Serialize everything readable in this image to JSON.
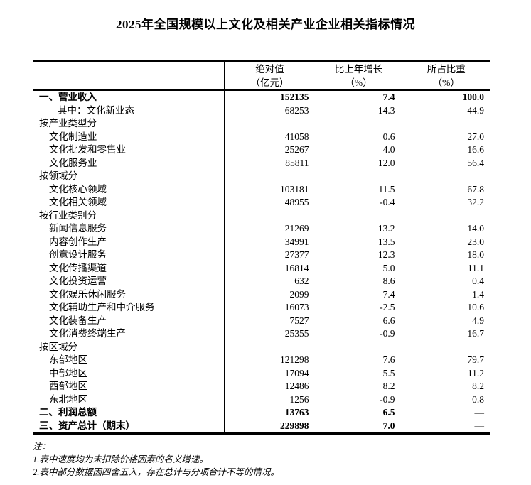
{
  "title": "2025年全国规模以上文化及相关产业企业相关指标情况",
  "table": {
    "header": {
      "cols": [
        {
          "line1": "",
          "line2": ""
        },
        {
          "line1": "绝对值",
          "line2": "（亿元）"
        },
        {
          "line1": "比上年增长",
          "line2": "（%）"
        },
        {
          "line1": "所占比重",
          "line2": "（%）"
        }
      ]
    },
    "rows": [
      {
        "label": "一、营业收入",
        "level": 0,
        "bold": true,
        "abs": "152135",
        "growth": "7.4",
        "share": "100.0"
      },
      {
        "label": "其中：文化新业态",
        "level": 2,
        "bold": false,
        "abs": "68253",
        "growth": "14.3",
        "share": "44.9"
      },
      {
        "label": "按产业类型分",
        "level": 0,
        "bold": false,
        "abs": "",
        "growth": "",
        "share": ""
      },
      {
        "label": "文化制造业",
        "level": 1,
        "bold": false,
        "abs": "41058",
        "growth": "0.6",
        "share": "27.0"
      },
      {
        "label": "文化批发和零售业",
        "level": 1,
        "bold": false,
        "abs": "25267",
        "growth": "4.0",
        "share": "16.6"
      },
      {
        "label": "文化服务业",
        "level": 1,
        "bold": false,
        "abs": "85811",
        "growth": "12.0",
        "share": "56.4"
      },
      {
        "label": "按领域分",
        "level": 0,
        "bold": false,
        "abs": "",
        "growth": "",
        "share": ""
      },
      {
        "label": "文化核心领域",
        "level": 1,
        "bold": false,
        "abs": "103181",
        "growth": "11.5",
        "share": "67.8"
      },
      {
        "label": "文化相关领域",
        "level": 1,
        "bold": false,
        "abs": "48955",
        "growth": "-0.4",
        "share": "32.2"
      },
      {
        "label": "按行业类别分",
        "level": 0,
        "bold": false,
        "abs": "",
        "growth": "",
        "share": ""
      },
      {
        "label": "新闻信息服务",
        "level": 1,
        "bold": false,
        "abs": "21269",
        "growth": "13.2",
        "share": "14.0"
      },
      {
        "label": "内容创作生产",
        "level": 1,
        "bold": false,
        "abs": "34991",
        "growth": "13.5",
        "share": "23.0"
      },
      {
        "label": "创意设计服务",
        "level": 1,
        "bold": false,
        "abs": "27377",
        "growth": "12.3",
        "share": "18.0"
      },
      {
        "label": "文化传播渠道",
        "level": 1,
        "bold": false,
        "abs": "16814",
        "growth": "5.0",
        "share": "11.1"
      },
      {
        "label": "文化投资运营",
        "level": 1,
        "bold": false,
        "abs": "632",
        "growth": "8.6",
        "share": "0.4"
      },
      {
        "label": "文化娱乐休闲服务",
        "level": 1,
        "bold": false,
        "abs": "2099",
        "growth": "7.4",
        "share": "1.4"
      },
      {
        "label": "文化辅助生产和中介服务",
        "level": 1,
        "bold": false,
        "abs": "16073",
        "growth": "-2.5",
        "share": "10.6"
      },
      {
        "label": "文化装备生产",
        "level": 1,
        "bold": false,
        "abs": "7527",
        "growth": "6.6",
        "share": "4.9"
      },
      {
        "label": "文化消费终端生产",
        "level": 1,
        "bold": false,
        "abs": "25355",
        "growth": "-0.9",
        "share": "16.7"
      },
      {
        "label": "按区域分",
        "level": 0,
        "bold": false,
        "abs": "",
        "growth": "",
        "share": ""
      },
      {
        "label": "东部地区",
        "level": 1,
        "bold": false,
        "abs": "121298",
        "growth": "7.6",
        "share": "79.7"
      },
      {
        "label": "中部地区",
        "level": 1,
        "bold": false,
        "abs": "17094",
        "growth": "5.5",
        "share": "11.2"
      },
      {
        "label": "西部地区",
        "level": 1,
        "bold": false,
        "abs": "12486",
        "growth": "8.2",
        "share": "8.2"
      },
      {
        "label": "东北地区",
        "level": 1,
        "bold": false,
        "abs": "1256",
        "growth": "-0.9",
        "share": "0.8"
      },
      {
        "label": "二、利润总额",
        "level": 0,
        "bold": true,
        "abs": "13763",
        "growth": "6.5",
        "share": "—"
      },
      {
        "label": "三、资产总计（期末）",
        "level": 0,
        "bold": true,
        "abs": "229898",
        "growth": "7.0",
        "share": "—"
      }
    ]
  },
  "notes": {
    "heading": "注：",
    "items": [
      "1.表中速度均为未扣除价格因素的名义增速。",
      "2.表中部分数据因四舍五入，存在总计与分项合计不等的情况。"
    ]
  }
}
